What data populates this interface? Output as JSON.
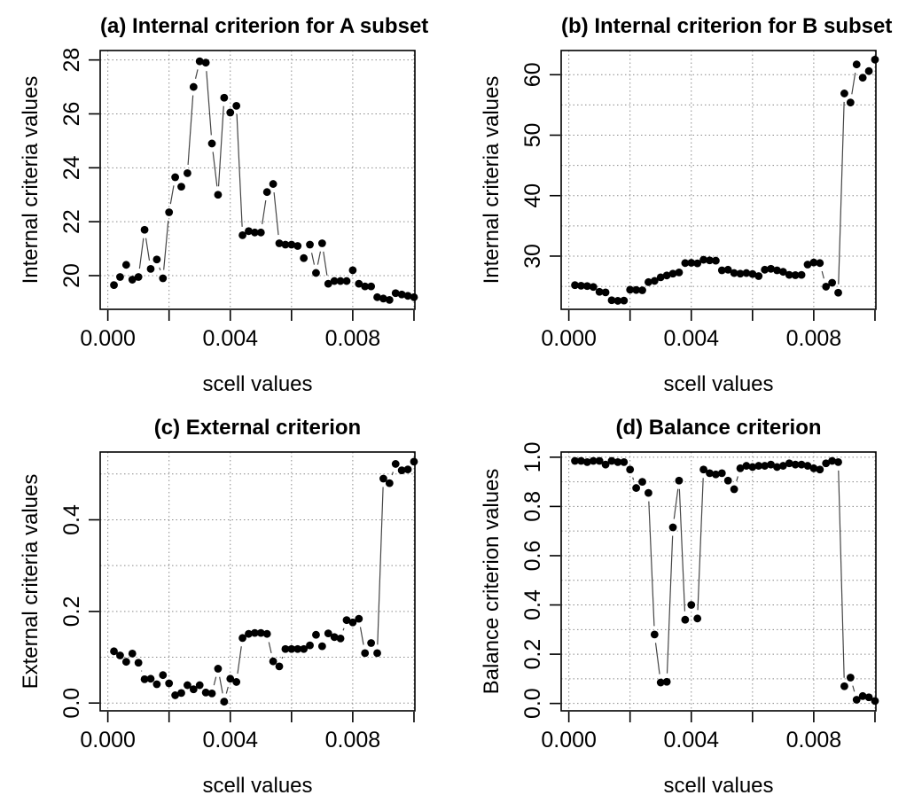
{
  "figure": {
    "background": "#ffffff",
    "dot_color": "#000000",
    "line_color": "#454545",
    "grid_color": "#8a8a8a",
    "axis_color": "#000000"
  },
  "chart_data": {
    "type": "scatter",
    "style": "R base plot, type='b', solid black points, dotted grid",
    "layout": "2x2 panels",
    "shared_x": {
      "label": "scell values",
      "xlim": [
        -0.00025,
        0.01003
      ],
      "ticks": [
        0.0,
        0.002,
        0.004,
        0.006,
        0.008,
        0.01
      ],
      "tick_labels": [
        "0.000",
        "",
        "0.004",
        "",
        "0.008",
        ""
      ],
      "grid_x": [
        0.0,
        0.002,
        0.004,
        0.006,
        0.008,
        0.01
      ],
      "values": [
        0.0002,
        0.0004,
        0.0006,
        0.0008,
        0.001,
        0.0012,
        0.0014,
        0.0016,
        0.0018,
        0.002,
        0.0022,
        0.0024,
        0.0026,
        0.0028,
        0.003,
        0.0032,
        0.0034,
        0.0036,
        0.0038,
        0.004,
        0.0042,
        0.0044,
        0.0046,
        0.0048,
        0.005,
        0.0052,
        0.0054,
        0.0056,
        0.0058,
        0.006,
        0.0062,
        0.0064,
        0.0066,
        0.0068,
        0.007,
        0.0072,
        0.0074,
        0.0076,
        0.0078,
        0.008,
        0.0082,
        0.0084,
        0.0086,
        0.0088,
        0.009,
        0.0092,
        0.0094,
        0.0096,
        0.0098,
        0.01
      ]
    },
    "panels": [
      {
        "id": "a",
        "title": "(a) Internal criterion for A subset",
        "ylabel": "Internal criteria values",
        "ylim": [
          18.75,
          28.35
        ],
        "yticks": [
          20,
          22,
          24,
          26,
          28
        ],
        "ytick_labels": [
          "20",
          "22",
          "24",
          "26",
          "28"
        ],
        "grid_y": [
          20,
          22,
          24,
          26,
          28
        ],
        "values": [
          19.65,
          19.95,
          20.4,
          19.85,
          19.95,
          21.7,
          20.25,
          20.6,
          19.9,
          22.35,
          23.65,
          23.3,
          23.8,
          27.0,
          27.95,
          27.9,
          24.9,
          23.0,
          26.6,
          26.05,
          26.3,
          21.5,
          21.65,
          21.6,
          21.6,
          23.1,
          23.4,
          21.2,
          21.15,
          21.15,
          21.1,
          20.65,
          21.15,
          20.1,
          21.2,
          19.7,
          19.8,
          19.8,
          19.8,
          20.2,
          19.7,
          19.6,
          19.6,
          19.2,
          19.15,
          19.1,
          19.35,
          19.3,
          19.25,
          19.2
        ]
      },
      {
        "id": "b",
        "title": "(b) Internal criterion for B subset",
        "ylabel": "Internal criteria values",
        "ylim": [
          21.2,
          64.0
        ],
        "yticks": [
          30,
          40,
          50,
          60
        ],
        "ytick_labels": [
          "30",
          "40",
          "50",
          "60"
        ],
        "grid_y": [
          25,
          30,
          35,
          40,
          45,
          50,
          55,
          60
        ],
        "values": [
          25.2,
          25.1,
          25.05,
          24.9,
          24.1,
          24.0,
          22.7,
          22.6,
          22.65,
          24.45,
          24.4,
          24.35,
          25.7,
          25.9,
          26.5,
          26.8,
          27.1,
          27.3,
          28.85,
          28.9,
          28.8,
          29.4,
          29.3,
          29.25,
          27.65,
          27.75,
          27.2,
          27.1,
          27.2,
          27.05,
          26.7,
          27.75,
          27.9,
          27.65,
          27.4,
          26.9,
          26.85,
          26.9,
          28.6,
          28.95,
          28.85,
          24.95,
          25.6,
          23.95,
          56.9,
          55.4,
          61.7,
          59.5,
          60.6,
          62.5
        ]
      },
      {
        "id": "c",
        "title": "(c) External criterion",
        "ylabel": "External criteria values",
        "ylim": [
          -0.017,
          0.548
        ],
        "yticks": [
          0.0,
          0.2,
          0.4
        ],
        "ytick_labels": [
          "0.0",
          "0.2",
          "0.4"
        ],
        "grid_y": [
          0.0,
          0.1,
          0.2,
          0.3,
          0.4,
          0.5
        ],
        "values": [
          0.113,
          0.104,
          0.09,
          0.108,
          0.088,
          0.052,
          0.053,
          0.041,
          0.061,
          0.043,
          0.017,
          0.022,
          0.039,
          0.03,
          0.039,
          0.023,
          0.021,
          0.075,
          0.003,
          0.053,
          0.046,
          0.142,
          0.151,
          0.153,
          0.153,
          0.151,
          0.091,
          0.08,
          0.118,
          0.118,
          0.118,
          0.118,
          0.126,
          0.149,
          0.124,
          0.152,
          0.144,
          0.141,
          0.181,
          0.176,
          0.184,
          0.109,
          0.131,
          0.109,
          0.49,
          0.48,
          0.522,
          0.508,
          0.51,
          0.527
        ]
      },
      {
        "id": "d",
        "title": "(d) Balance criterion",
        "ylabel": "Balance criterion values",
        "ylim": [
          -0.03,
          1.021
        ],
        "yticks": [
          0.0,
          0.2,
          0.4,
          0.6,
          0.8,
          1.0
        ],
        "ytick_labels": [
          "0.0",
          "0.2",
          "0.4",
          "0.6",
          "0.8",
          "1.0"
        ],
        "grid_y": [
          0.0,
          0.1,
          0.2,
          0.3,
          0.4,
          0.5,
          0.6,
          0.7,
          0.8,
          0.9,
          1.0
        ],
        "values": [
          0.985,
          0.985,
          0.98,
          0.985,
          0.985,
          0.97,
          0.985,
          0.98,
          0.98,
          0.95,
          0.875,
          0.9,
          0.855,
          0.28,
          0.085,
          0.088,
          0.715,
          0.905,
          0.34,
          0.4,
          0.345,
          0.95,
          0.935,
          0.93,
          0.935,
          0.905,
          0.87,
          0.955,
          0.965,
          0.96,
          0.965,
          0.965,
          0.97,
          0.96,
          0.965,
          0.975,
          0.97,
          0.97,
          0.965,
          0.955,
          0.95,
          0.975,
          0.985,
          0.98,
          0.07,
          0.105,
          0.015,
          0.03,
          0.025,
          0.01
        ]
      }
    ]
  }
}
